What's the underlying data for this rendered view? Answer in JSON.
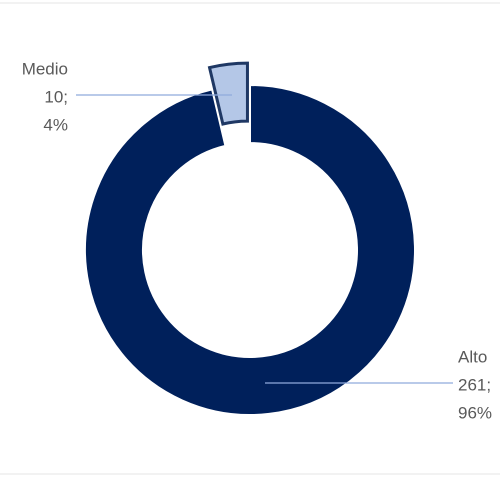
{
  "chart_data": {
    "type": "donut",
    "categories": [
      "Alto",
      "Medio"
    ],
    "values": [
      261,
      10
    ],
    "value_labels": [
      "261;",
      "10;"
    ],
    "percent_labels": [
      "96%",
      "4%"
    ],
    "colors": [
      "#00205b",
      "#b4c7e7"
    ],
    "exploded": [
      false,
      true
    ]
  }
}
